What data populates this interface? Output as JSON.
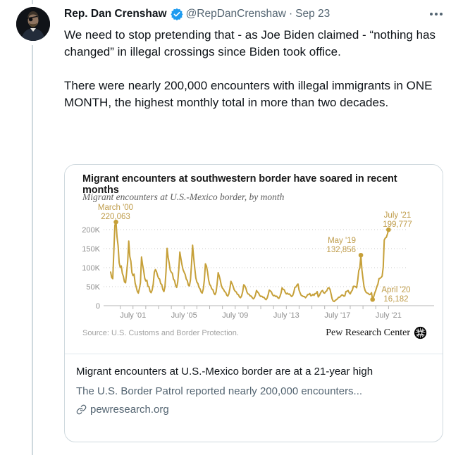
{
  "tweet": {
    "author": "Rep. Dan Crenshaw",
    "handle": "@RepDanCrenshaw",
    "separator": "·",
    "date": "Sep 23",
    "body": [
      "We need to stop pretending that - as Joe Biden claimed - “nothing has changed” in illegal crossings since Biden took office.",
      "There were nearly 200,000 encounters with illegal immigrants in ONE MONTH, the highest monthly total in more than two decades."
    ]
  },
  "card": {
    "chart": {
      "title": "Migrant encounters at southwestern border have soared in recent months",
      "subtitle": "Migrant encounters at U.S.-Mexico border, by month",
      "source": "Source: U.S. Customs and Border Protection.",
      "branding": "Pew Research Center"
    },
    "link_title": "Migrant encounters at U.S.-Mexico border are at a 21-year high",
    "link_description": "The U.S. Border Patrol reported nearly 200,000 encounters...",
    "link_domain": "pewresearch.org"
  },
  "icons": {
    "verified": "check-seal",
    "more": "ellipsis",
    "link": "chain",
    "pew_logo": "sunburst"
  },
  "colors": {
    "line_gold": "#c6a039",
    "annotation_gold": "#bf9c4a",
    "axis_gray": "#b5b5b5",
    "grid_gray": "#c9c9c9",
    "tick_label_gray": "#8f8f8f",
    "twitter_gray": "#536471",
    "twitter_black": "#0f1419",
    "verified_blue": "#1d9bf0",
    "card_border": "#cfd9de"
  },
  "chart_data": {
    "type": "line",
    "title": "Migrant encounters at southwestern border have soared in recent months",
    "subtitle": "Migrant encounters at U.S.-Mexico border, by month",
    "x_start": "1999-10",
    "x_end": "2021-07",
    "frequency": "monthly",
    "ylim": [
      0,
      230000
    ],
    "grid": "dotted-horizontal",
    "y_ticks": [
      {
        "label": "0",
        "value": 0
      },
      {
        "label": "50K",
        "value": 50000
      },
      {
        "label": "100K",
        "value": 100000
      },
      {
        "label": "150K",
        "value": 150000
      },
      {
        "label": "200K",
        "value": 200000
      }
    ],
    "x_ticks": [
      {
        "label": "July '01",
        "month_index": 21
      },
      {
        "label": "July '05",
        "month_index": 69
      },
      {
        "label": "July '09",
        "month_index": 117
      },
      {
        "label": "July '13",
        "month_index": 165
      },
      {
        "label": "July '17",
        "month_index": 213
      },
      {
        "label": "July '21",
        "month_index": 261
      }
    ],
    "annotations": [
      {
        "label": "March '00",
        "value_label": "220,063",
        "value": 220063,
        "month_index": 5
      },
      {
        "label": "May '19",
        "value_label": "132,856",
        "value": 132856,
        "month_index": 235
      },
      {
        "label": "April '20",
        "value_label": "16,182",
        "value": 16182,
        "month_index": 246
      },
      {
        "label": "July '21",
        "value_label": "199,777",
        "value": 199777,
        "month_index": 261
      }
    ],
    "source": "Source: U.S. Customs and Border Protection.",
    "branding": "Pew Research Center",
    "values": [
      88600,
      74000,
      71000,
      140600,
      211300,
      220063,
      180000,
      157600,
      113000,
      100300,
      104500,
      85000,
      77000,
      62800,
      60000,
      87000,
      116000,
      170000,
      129500,
      117000,
      87000,
      79000,
      83000,
      59000,
      49000,
      38000,
      33000,
      45000,
      60000,
      128000,
      108000,
      93000,
      72000,
      65000,
      67000,
      51000,
      50000,
      38000,
      34000,
      41000,
      56000,
      88000,
      95000,
      90000,
      80000,
      72000,
      70000,
      58000,
      56000,
      43000,
      37000,
      50000,
      90000,
      151000,
      127000,
      112000,
      93000,
      88000,
      85000,
      70000,
      66000,
      53000,
      48000,
      62000,
      95000,
      141000,
      124000,
      108000,
      95000,
      88000,
      82000,
      70000,
      66000,
      54000,
      52000,
      68000,
      110000,
      159000,
      125000,
      98000,
      73000,
      62000,
      58000,
      48000,
      44000,
      36000,
      33000,
      44000,
      68000,
      110000,
      104000,
      89000,
      68000,
      56000,
      52000,
      44000,
      42000,
      33000,
      29000,
      36000,
      57000,
      87000,
      78000,
      67000,
      53000,
      46000,
      43000,
      37000,
      35000,
      28000,
      25000,
      31000,
      45000,
      64000,
      58000,
      51000,
      42000,
      38000,
      36000,
      30000,
      29000,
      23000,
      21000,
      26000,
      37000,
      55000,
      52000,
      46000,
      36000,
      31000,
      30000,
      26000,
      25000,
      21000,
      18000,
      21000,
      28000,
      40000,
      36000,
      33000,
      27000,
      24000,
      25000,
      22000,
      22000,
      18000,
      16000,
      20000,
      29000,
      41000,
      39000,
      36000,
      29000,
      26000,
      27000,
      24000,
      25000,
      21000,
      19000,
      24000,
      33000,
      47000,
      43000,
      42000,
      35000,
      31000,
      33000,
      30000,
      31000,
      27000,
      24000,
      27000,
      35000,
      48000,
      49000,
      54000,
      57000,
      41000,
      33000,
      27000,
      26000,
      24000,
      24000,
      21000,
      24000,
      29000,
      29000,
      32000,
      26000,
      27000,
      30000,
      27000,
      32000,
      32000,
      37000,
      23000,
      27000,
      33000,
      38000,
      40000,
      34000,
      33000,
      37000,
      39000,
      46000,
      47000,
      43000,
      31000,
      18000,
      12000,
      11000,
      14000,
      16000,
      18000,
      22000,
      22000,
      25000,
      28000,
      28000,
      25000,
      26000,
      37000,
      38000,
      40000,
      34000,
      31000,
      37000,
      41000,
      51000,
      51000,
      50000,
      47000,
      66000,
      92000,
      99000,
      132856,
      94000,
      71000,
      50000,
      40000,
      35000,
      33000,
      32000,
      29000,
      30000,
      34000,
      16182,
      23000,
      33000,
      40000,
      50000,
      57000,
      71000,
      72000,
      74000,
      78000,
      101000,
      173000,
      178000,
      180000,
      189000,
      199777
    ]
  }
}
